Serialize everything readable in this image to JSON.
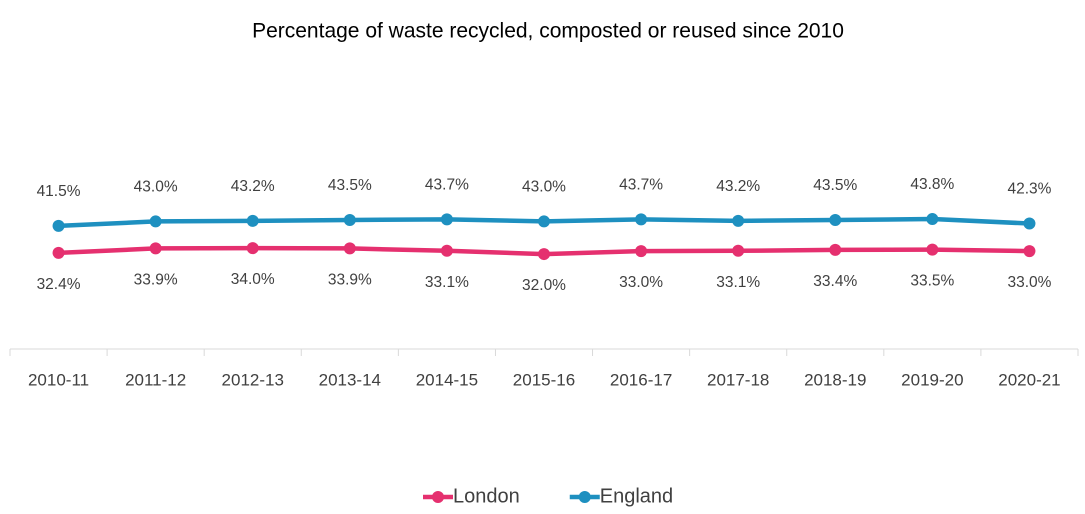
{
  "chart_data": {
    "type": "line",
    "title": "Percentage of waste recycled, composted or reused since 2010",
    "categories": [
      "2010-11",
      "2011-12",
      "2012-13",
      "2013-14",
      "2014-15",
      "2015-16",
      "2016-17",
      "2017-18",
      "2018-19",
      "2019-20",
      "2020-21"
    ],
    "series": [
      {
        "name": "London",
        "color": "#e5306f",
        "values": [
          32.4,
          33.9,
          34.0,
          33.9,
          33.1,
          32.0,
          33.0,
          33.1,
          33.4,
          33.5,
          33.0
        ],
        "value_labels": [
          "32.4%",
          "33.9%",
          "34.0%",
          "33.9%",
          "33.1%",
          "32.0%",
          "33.0%",
          "33.1%",
          "33.4%",
          "33.5%",
          "33.0%"
        ]
      },
      {
        "name": "England",
        "color": "#1e90c0",
        "values": [
          41.5,
          43.0,
          43.2,
          43.5,
          43.7,
          43.0,
          43.7,
          43.2,
          43.5,
          43.8,
          42.3
        ],
        "value_labels": [
          "41.5%",
          "43.0%",
          "43.2%",
          "43.5%",
          "43.7%",
          "43.0%",
          "43.7%",
          "43.2%",
          "43.5%",
          "43.8%",
          "42.3%"
        ]
      }
    ],
    "ylim": [
      0,
      60
    ],
    "legend": "bottom"
  }
}
